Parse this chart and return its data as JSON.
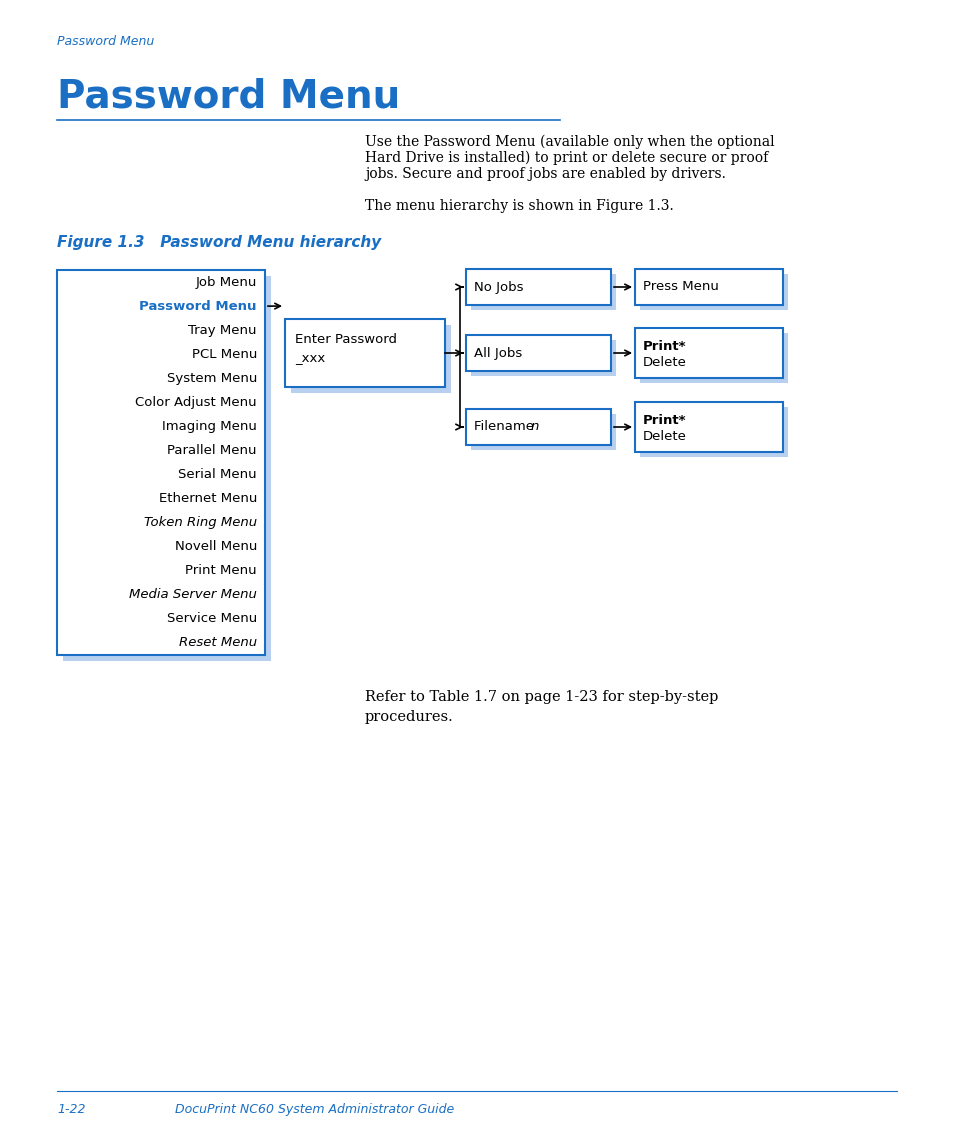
{
  "bg_color": "#ffffff",
  "blue_color": "#1a6fc4",
  "light_blue_shadow": "#b8d0f0",
  "text_color": "#000000",
  "page_label": "Password Menu",
  "title": "Password Menu",
  "body_text": "Use the Password Menu (available only when the optional\nHard Drive is installed) to print or delete secure or proof\njobs. Secure and proof jobs are enabled by drivers.\n\nThe menu hierarchy is shown in Figure 1.3.",
  "figure_label": "Figure 1.3   Password Menu hierarchy",
  "footer_page": "1-22",
  "footer_title": "DocuPrint NC60 System Administrator Guide",
  "refer_text": "Refer to Table 1.7 on page 1-23 for step-by-step\nprocedures.",
  "menu_items": [
    {
      "text": "Job Menu",
      "italic": false,
      "blue": false
    },
    {
      "text": "Password Menu",
      "italic": false,
      "blue": true
    },
    {
      "text": "Tray Menu",
      "italic": false,
      "blue": false
    },
    {
      "text": "PCL Menu",
      "italic": false,
      "blue": false
    },
    {
      "text": "System Menu",
      "italic": false,
      "blue": false
    },
    {
      "text": "Color Adjust Menu",
      "italic": false,
      "blue": false
    },
    {
      "text": "Imaging Menu",
      "italic": false,
      "blue": false
    },
    {
      "text": "Parallel Menu",
      "italic": false,
      "blue": false
    },
    {
      "text": "Serial Menu",
      "italic": false,
      "blue": false
    },
    {
      "text": "Ethernet Menu",
      "italic": false,
      "blue": false
    },
    {
      "text": "Token Ring Menu",
      "italic": true,
      "blue": false
    },
    {
      "text": "Novell Menu",
      "italic": false,
      "blue": false
    },
    {
      "text": "Print Menu",
      "italic": false,
      "blue": false
    },
    {
      "text": "Media Server Menu",
      "italic": true,
      "blue": false
    },
    {
      "text": "Service Menu",
      "italic": false,
      "blue": false
    },
    {
      "text": "Reset Menu",
      "italic": true,
      "blue": false
    }
  ]
}
